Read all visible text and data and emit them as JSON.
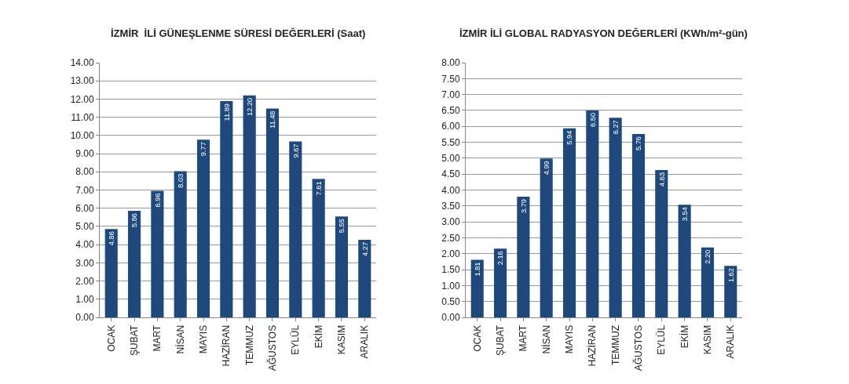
{
  "chart_data": [
    {
      "type": "bar",
      "title": "İZMİR  İLİ GÜNEŞLENME SÜRESİ DEĞERLERİ (Saat)",
      "categories": [
        "OCAK",
        "ŞUBAT",
        "MART",
        "NİSAN",
        "MAYIS",
        "HAZİRAN",
        "TEMMUZ",
        "AĞUSTOS",
        "EYLÜL",
        "EKİM",
        "KASIM",
        "ARALIK"
      ],
      "values": [
        4.86,
        5.86,
        6.96,
        8.03,
        9.77,
        11.89,
        12.2,
        11.48,
        9.67,
        7.61,
        5.55,
        4.27
      ],
      "value_labels": [
        "4.86",
        "5.86",
        "6.96",
        "8.03",
        "9.77",
        "11.89",
        "12.20",
        "11.48",
        "9.67",
        "7.61",
        "5.55",
        "4.27"
      ],
      "color": "#1f497d",
      "ylim": [
        0,
        14
      ],
      "yticks": [
        {
          "value": 0,
          "label": "0.00"
        },
        {
          "value": 1,
          "label": "1.00"
        },
        {
          "value": 2,
          "label": "2.00"
        },
        {
          "value": 3,
          "label": "3.00"
        },
        {
          "value": 4,
          "label": "4.00"
        },
        {
          "value": 5,
          "label": "5.00"
        },
        {
          "value": 6,
          "label": "6.00"
        },
        {
          "value": 7,
          "label": "7.00"
        },
        {
          "value": 8,
          "label": "8.00"
        },
        {
          "value": 9,
          "label": "9.00"
        },
        {
          "value": 10,
          "label": "10.00"
        },
        {
          "value": 11,
          "label": "11.00"
        },
        {
          "value": 12,
          "label": "12.00"
        },
        {
          "value": 13,
          "label": "13.00"
        },
        {
          "value": 14,
          "label": "14.00"
        }
      ],
      "grid": "y"
    },
    {
      "type": "bar",
      "title": "İZMİR İLİ GLOBAL RADYASYON DEĞERLERİ (KWh/m²-gün)",
      "categories": [
        "OCAK",
        "ŞUBAT",
        "MART",
        "NİSAN",
        "MAYIS",
        "HAZİRAN",
        "TEMMUZ",
        "AĞUSTOS",
        "EYLÜL",
        "EKİM",
        "KASIM",
        "ARALIK"
      ],
      "values": [
        1.81,
        2.16,
        3.79,
        4.99,
        5.94,
        6.5,
        6.27,
        5.76,
        4.63,
        3.54,
        2.2,
        1.62
      ],
      "value_labels": [
        "1.81",
        "2.16",
        "3.79",
        "4.99",
        "5.94",
        "6.50",
        "6.27",
        "5.76",
        "4.63",
        "3.54",
        "2.20",
        "1.62"
      ],
      "color": "#1f497d",
      "ylim": [
        0,
        8
      ],
      "yticks": [
        {
          "value": 0,
          "label": "0.00"
        },
        {
          "value": 0.5,
          "label": "0.50"
        },
        {
          "value": 1,
          "label": "1.00"
        },
        {
          "value": 1.5,
          "label": "1.50"
        },
        {
          "value": 2,
          "label": "2.00"
        },
        {
          "value": 2.5,
          "label": "2.50"
        },
        {
          "value": 3,
          "label": "3.00"
        },
        {
          "value": 3.5,
          "label": "3.50"
        },
        {
          "value": 4,
          "label": "4.00"
        },
        {
          "value": 4.5,
          "label": "4.50"
        },
        {
          "value": 5,
          "label": "5.00"
        },
        {
          "value": 5.5,
          "label": "5.50"
        },
        {
          "value": 6,
          "label": "6.00"
        },
        {
          "value": 6.5,
          "label": "6.50"
        },
        {
          "value": 7,
          "label": "7.00"
        },
        {
          "value": 7.5,
          "label": "7.50"
        },
        {
          "value": 8,
          "label": "8.00"
        }
      ],
      "grid": "y"
    }
  ]
}
